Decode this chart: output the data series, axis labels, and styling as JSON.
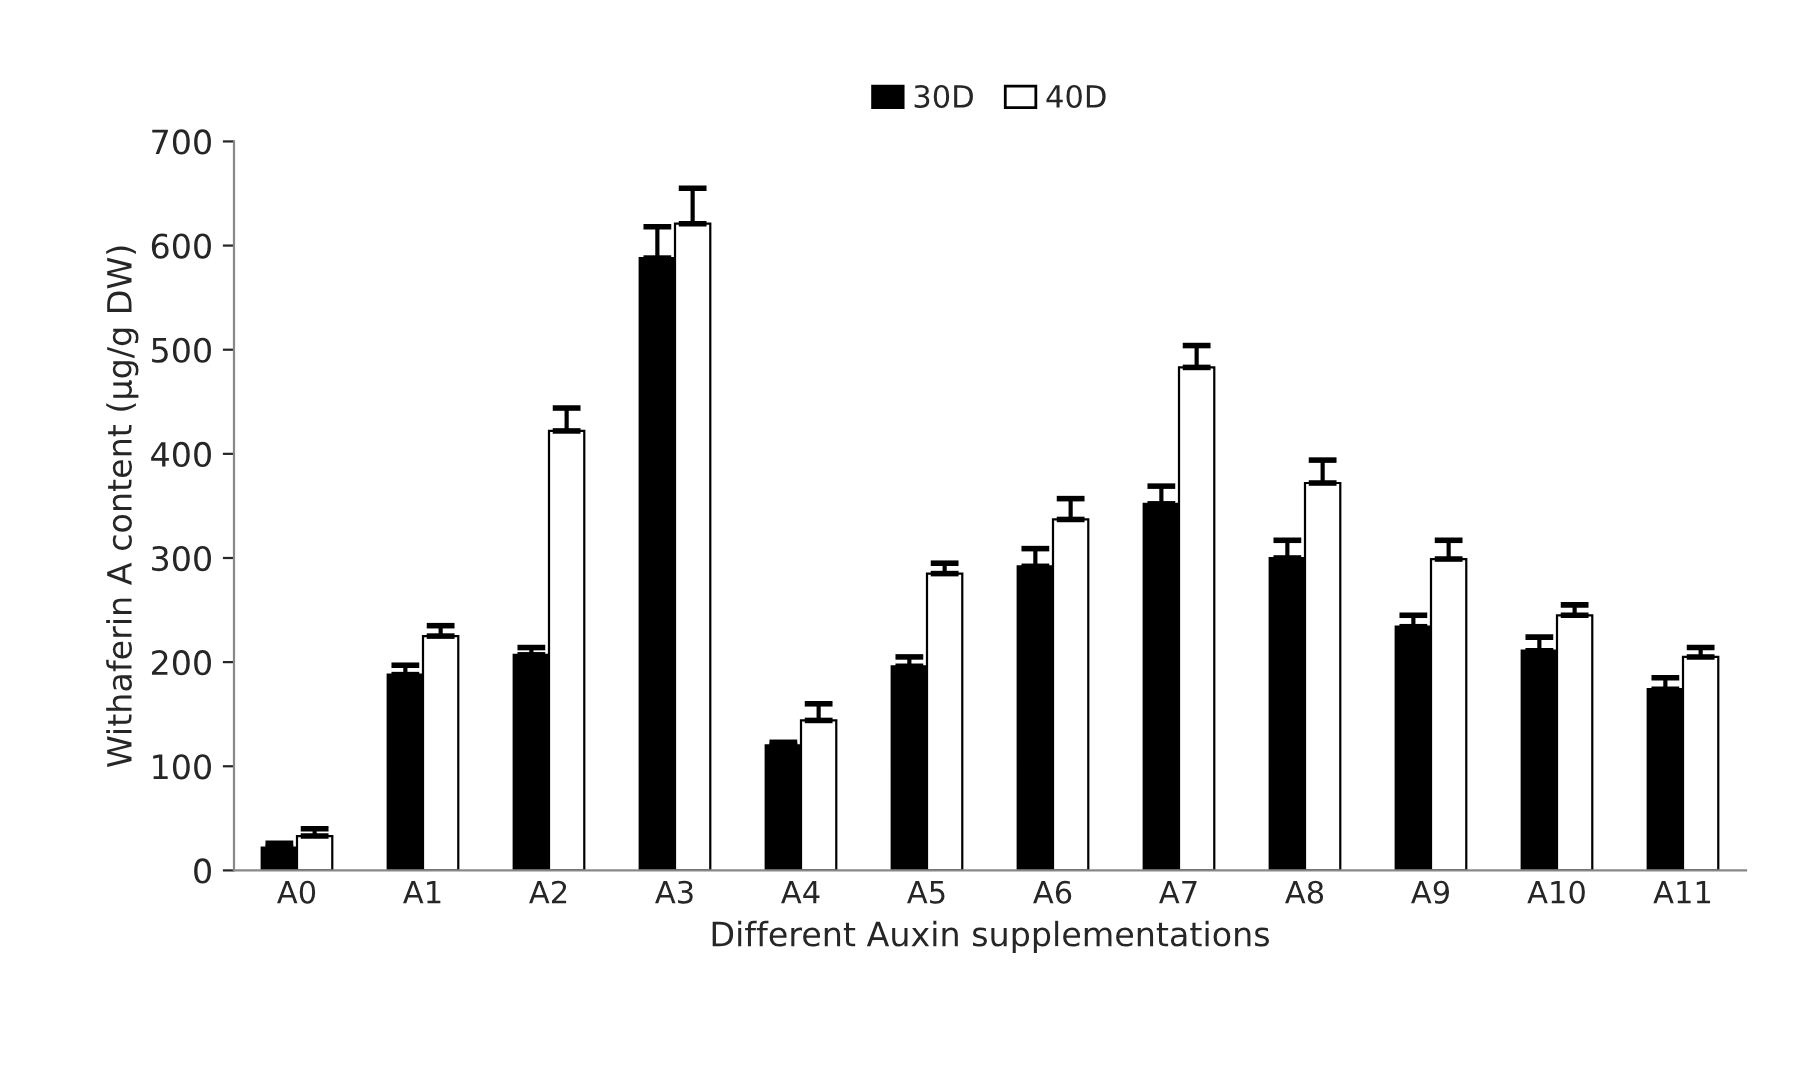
{
  "chart_data": {
    "type": "bar",
    "xlabel": "Different Auxin supplementations",
    "ylabel": "Withaferin A content (µg/g DW)",
    "categories": [
      "A0",
      "A1",
      "A2",
      "A3",
      "A4",
      "A5",
      "A6",
      "A7",
      "A8",
      "A9",
      "A10",
      "A11"
    ],
    "series": [
      {
        "name": "30D",
        "color": "#000000",
        "values": [
          22,
          188,
          207,
          588,
          120,
          196,
          292,
          352,
          300,
          234,
          211,
          174
        ],
        "errors": [
          4,
          9,
          7,
          30,
          3,
          9,
          17,
          17,
          17,
          11,
          13,
          11
        ]
      },
      {
        "name": "40D",
        "color": "#ffffff",
        "values": [
          33,
          225,
          422,
          621,
          144,
          285,
          337,
          483,
          372,
          299,
          245,
          205
        ],
        "errors": [
          7,
          10,
          22,
          34,
          16,
          10,
          20,
          21,
          22,
          18,
          10,
          9
        ]
      }
    ],
    "ylim": [
      0,
      700
    ],
    "yticks": [
      0,
      100,
      200,
      300,
      400,
      500,
      600,
      700
    ],
    "grid": false,
    "legend": "top"
  }
}
